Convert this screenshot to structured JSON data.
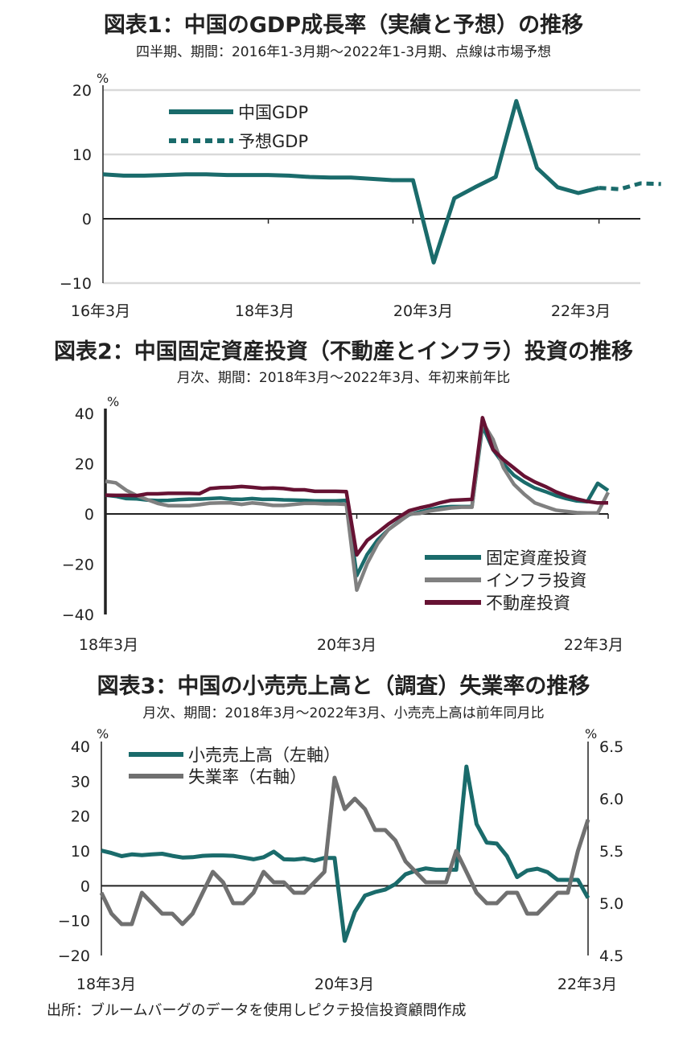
{
  "colors": {
    "teal": "#1a6b6b",
    "gray": "#808080",
    "maroon": "#661233",
    "grid": "#d9d9d9",
    "axis": "#222222"
  },
  "source": "出所：ブルームバーグのデータを使用しピクテ投信投資顧問作成",
  "chart_data": [
    {
      "type": "line",
      "title": "図表1：中国のGDP成長率（実績と予想）の推移",
      "subtitle": "四半期、期間：2016年1-3月期～2022年1-3月期、点線は市場予想",
      "y_unit": "%",
      "ylim": [
        -10,
        20
      ],
      "yticks": [
        -10,
        0,
        10,
        20
      ],
      "grid": true,
      "legend_position": "top-left",
      "x_labels": [
        "16年3月",
        "18年3月",
        "20年3月",
        "22年3月"
      ],
      "x_label_index": [
        0,
        8,
        16,
        24
      ],
      "n_points": 27,
      "series": [
        {
          "name": "中国GDP",
          "style": "solid",
          "color": "#1a6b6b",
          "start_index": 0,
          "values": [
            6.9,
            6.7,
            6.7,
            6.8,
            6.9,
            6.9,
            6.8,
            6.8,
            6.8,
            6.7,
            6.5,
            6.4,
            6.4,
            6.2,
            6.0,
            6.0,
            -6.8,
            3.2,
            4.9,
            6.5,
            18.3,
            7.9,
            4.9,
            4.0,
            4.8
          ]
        },
        {
          "name": "予想GDP",
          "style": "dashed",
          "color": "#1a6b6b",
          "start_index": 24,
          "values": [
            4.8,
            4.6,
            5.5,
            5.4
          ]
        }
      ]
    },
    {
      "type": "line",
      "title": "図表2：中国固定資産投資（不動産とインフラ）投資の推移",
      "subtitle": "月次、期間：2018年3月～2022年3月、年初来前年比",
      "y_unit": "%",
      "ylim": [
        -40,
        40
      ],
      "yticks": [
        -40,
        -20,
        0,
        20,
        40
      ],
      "grid": false,
      "legend_position": "bottom-right",
      "x_labels": [
        "18年3月",
        "20年3月",
        "22年3月"
      ],
      "x_label_index": [
        0,
        24,
        48
      ],
      "n_points": 49,
      "series": [
        {
          "name": "固定資産投資",
          "color": "#1a6b6b",
          "values": [
            7.5,
            7.0,
            6.1,
            6.0,
            5.5,
            5.3,
            5.4,
            5.7,
            5.9,
            5.9,
            6.1,
            6.3,
            5.9,
            5.8,
            6.1,
            5.8,
            5.8,
            5.6,
            5.5,
            5.4,
            5.2,
            5.2,
            5.2,
            5.4,
            -24.5,
            -16.1,
            -10.3,
            -6.3,
            -3.1,
            -0.3,
            0.8,
            1.8,
            2.6,
            2.9,
            2.9,
            2.9,
            35.0,
            25.6,
            19.9,
            15.4,
            12.6,
            10.3,
            8.9,
            7.3,
            6.1,
            5.2,
            4.9,
            12.2,
            9.3
          ]
        },
        {
          "name": "インフラ投資",
          "color": "#808080",
          "values": [
            13.0,
            12.4,
            9.4,
            7.3,
            5.7,
            4.2,
            3.3,
            3.3,
            3.3,
            3.7,
            4.3,
            4.4,
            4.4,
            3.8,
            4.4,
            4.0,
            3.4,
            3.4,
            3.8,
            4.2,
            4.2,
            4.0,
            4.0,
            3.8,
            -30.3,
            -19.7,
            -11.8,
            -6.3,
            -3.3,
            -0.1,
            0.2,
            1.2,
            1.8,
            2.4,
            2.7,
            2.7,
            36.6,
            29.7,
            18.4,
            11.8,
            7.8,
            4.4,
            2.9,
            1.5,
            1.0,
            0.5,
            0.4,
            0.4,
            8.6
          ]
        },
        {
          "name": "不動産投資",
          "color": "#661233",
          "values": [
            7.5,
            7.4,
            7.4,
            7.3,
            8.0,
            8.0,
            8.2,
            8.2,
            8.2,
            8.1,
            10.1,
            10.5,
            10.6,
            10.9,
            10.6,
            10.2,
            10.3,
            10.1,
            9.6,
            9.6,
            9.0,
            9.0,
            9.0,
            8.9,
            -16.3,
            -10.5,
            -7.4,
            -4.1,
            -1.3,
            1.3,
            2.4,
            3.3,
            4.5,
            5.4,
            5.6,
            5.8,
            38.3,
            25.6,
            21.6,
            18.3,
            15.0,
            12.7,
            10.9,
            8.8,
            7.2,
            6.0,
            5.0,
            4.4,
            4.4
          ]
        }
      ]
    },
    {
      "type": "line",
      "title": "図表3：中国の小売売上高と（調査）失業率の推移",
      "subtitle": "月次、期間：2018年3月～2022年3月、小売売上高は前年同月比",
      "y_unit": "%",
      "y_unit_right": "%",
      "ylim": [
        -20,
        40
      ],
      "yticks": [
        -20,
        -10,
        0,
        10,
        20,
        30,
        40
      ],
      "ylim_right": [
        4.5,
        6.5
      ],
      "yticks_right": [
        "4.5",
        "5.0",
        "5.5",
        "6.0",
        "6.5"
      ],
      "grid": false,
      "legend_position": "top-left",
      "x_labels": [
        "18年3月",
        "20年3月",
        "22年3月"
      ],
      "x_label_index": [
        0,
        24,
        48
      ],
      "n_points": 49,
      "series": [
        {
          "name": "小売売上高（左軸）",
          "color": "#1a6b6b",
          "axis": "left",
          "values": [
            10.1,
            9.4,
            8.5,
            9.0,
            8.8,
            9.0,
            9.2,
            8.6,
            8.1,
            8.2,
            8.6,
            8.7,
            8.7,
            8.6,
            8.1,
            7.6,
            8.2,
            9.8,
            7.6,
            7.5,
            7.8,
            7.2,
            8.0,
            8.0,
            -15.8,
            -7.5,
            -2.8,
            -1.8,
            -1.1,
            0.5,
            3.3,
            4.3,
            5.0,
            4.6,
            4.6,
            4.6,
            34.2,
            17.7,
            12.4,
            12.1,
            8.5,
            2.5,
            4.4,
            4.9,
            3.9,
            1.7,
            1.7,
            1.7,
            -3.5
          ]
        },
        {
          "name": "失業率（右軸）",
          "color": "#707070",
          "axis": "right",
          "values": [
            5.1,
            4.9,
            4.8,
            4.8,
            5.1,
            5.0,
            4.9,
            4.9,
            4.8,
            4.9,
            5.1,
            5.3,
            5.2,
            5.0,
            5.0,
            5.1,
            5.3,
            5.2,
            5.2,
            5.1,
            5.1,
            5.2,
            5.3,
            6.2,
            5.9,
            6.0,
            5.9,
            5.7,
            5.7,
            5.6,
            5.4,
            5.3,
            5.2,
            5.2,
            5.2,
            5.5,
            5.3,
            5.1,
            5.0,
            5.0,
            5.1,
            5.1,
            4.9,
            4.9,
            5.0,
            5.1,
            5.1,
            5.5,
            5.8
          ]
        }
      ]
    }
  ]
}
